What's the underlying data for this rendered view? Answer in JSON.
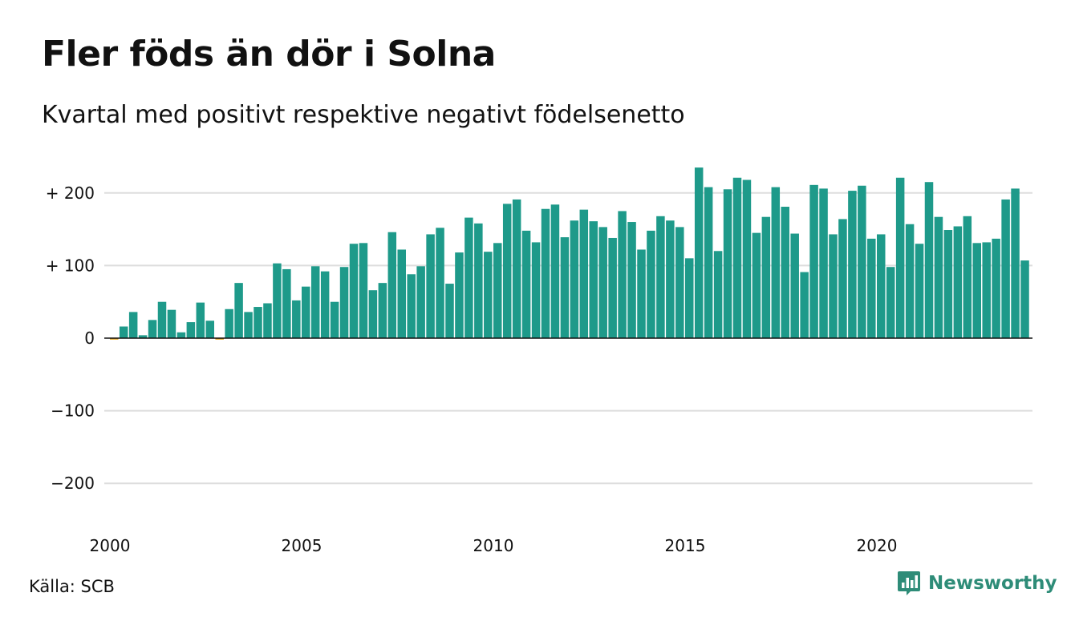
{
  "header": {
    "title": "Fler föds än dör i Solna",
    "subtitle": "Kvartal med positivt respektive negativt födelsenetto"
  },
  "footer": {
    "source": "Källa: SCB",
    "brand": "Newsworthy",
    "brand_icon": "chart-bubble-icon"
  },
  "colors": {
    "positive": "#1e9a8a",
    "negative": "#e8a317",
    "grid": "#dddddd",
    "brand": "#2e8c78"
  },
  "chart_data": {
    "type": "bar",
    "start_year": 2000,
    "periods_per_year": 4,
    "ylim": [
      -250,
      250
    ],
    "grid": true,
    "y_ticks": [
      {
        "value": 200,
        "label": "+ 200"
      },
      {
        "value": 100,
        "label": "+ 100"
      },
      {
        "value": 0,
        "label": "0"
      },
      {
        "value": -100,
        "label": "−100"
      },
      {
        "value": -200,
        "label": "−200"
      }
    ],
    "x_ticks": [
      "2000",
      "2005",
      "2010",
      "2015",
      "2020"
    ],
    "values": [
      -2,
      16,
      36,
      4,
      25,
      50,
      39,
      8,
      22,
      49,
      24,
      -2,
      40,
      76,
      36,
      43,
      48,
      103,
      95,
      52,
      71,
      99,
      92,
      50,
      98,
      130,
      131,
      66,
      76,
      146,
      122,
      88,
      99,
      143,
      152,
      75,
      118,
      166,
      158,
      119,
      131,
      185,
      191,
      148,
      132,
      178,
      184,
      139,
      162,
      177,
      161,
      153,
      138,
      175,
      160,
      122,
      148,
      168,
      162,
      153,
      110,
      235,
      208,
      120,
      205,
      221,
      218,
      145,
      167,
      208,
      181,
      144,
      91,
      211,
      206,
      143,
      164,
      203,
      210,
      137,
      143,
      98,
      221,
      157,
      130,
      215,
      167,
      149,
      154,
      168,
      131,
      132,
      137,
      191,
      206,
      107
    ]
  }
}
